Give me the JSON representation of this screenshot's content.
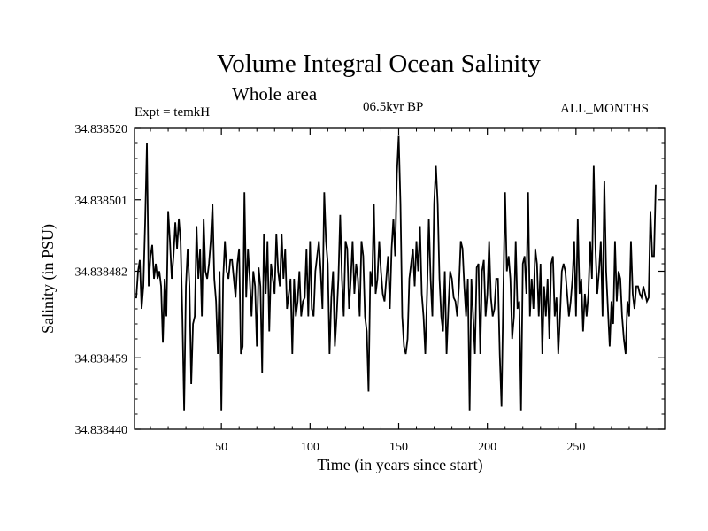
{
  "chart_data": {
    "type": "line",
    "title": "Volume Integral Ocean Salinity",
    "subtitle": "Whole area",
    "annotations": {
      "left": "Expt = temkH",
      "center": "06.5kyr BP",
      "right": "ALL_MONTHS"
    },
    "xlabel": "Time (in years since start)",
    "ylabel": "Salinity (in PSU)",
    "xlim": [
      1,
      300
    ],
    "ylim": [
      34.83844,
      34.83852
    ],
    "xticks": [
      50,
      100,
      150,
      200,
      250
    ],
    "xtick_labels": [
      "50",
      "100",
      "150",
      "200",
      "250"
    ],
    "yticks": [
      34.83844,
      34.838459,
      34.838482,
      34.838501,
      34.83852
    ],
    "ytick_labels": [
      "34.838440",
      "34.838459",
      "34.838482",
      "34.838501",
      "34.838520"
    ],
    "grid": false,
    "series": [
      {
        "name": "Salinity",
        "color": "#000000",
        "x_start": 1,
        "x_step": 1,
        "values": [
          34.838475,
          34.838475,
          34.838482,
          34.838485,
          34.838472,
          34.838478,
          34.838495,
          34.838516,
          34.838478,
          34.838486,
          34.838489,
          34.83848,
          34.838484,
          34.83848,
          34.838482,
          34.838478,
          34.838463,
          34.83848,
          34.83847,
          34.838498,
          34.83849,
          34.83848,
          34.838486,
          34.838495,
          34.838488,
          34.838496,
          34.83849,
          34.83847,
          34.838445,
          34.838478,
          34.838488,
          34.838478,
          34.838452,
          34.838468,
          34.83847,
          34.838494,
          34.83848,
          34.838488,
          34.83847,
          34.838496,
          34.838482,
          34.83848,
          34.838484,
          34.83849,
          34.8385,
          34.83848,
          34.838474,
          34.83846,
          34.838482,
          34.838445,
          34.83848,
          34.83849,
          34.838482,
          34.83848,
          34.838485,
          34.838485,
          34.83848,
          34.838475,
          34.838484,
          34.838488,
          34.83846,
          34.838462,
          34.838503,
          34.838475,
          34.838488,
          34.83848,
          34.83847,
          34.838482,
          34.838478,
          34.838462,
          34.838483,
          34.838478,
          34.838455,
          34.838492,
          34.838476,
          34.83849,
          34.838466,
          34.838484,
          34.83848,
          34.838476,
          34.838492,
          34.838482,
          34.838478,
          34.838492,
          34.83848,
          34.838488,
          34.838472,
          34.838476,
          34.83848,
          34.83846,
          34.83848,
          34.83847,
          34.838474,
          34.838482,
          34.83847,
          34.838474,
          34.838475,
          34.838488,
          34.83847,
          34.83849,
          34.838472,
          34.83847,
          34.838482,
          34.838486,
          34.83849,
          34.838482,
          34.838472,
          34.838503,
          34.83849,
          34.838484,
          34.83846,
          34.838475,
          34.838482,
          34.838462,
          34.83847,
          34.83848,
          34.838497,
          34.83848,
          34.83847,
          34.83849,
          34.838488,
          34.838472,
          34.83848,
          34.83849,
          34.838476,
          34.838484,
          34.83848,
          34.83847,
          34.83849,
          34.838486,
          34.83847,
          34.838466,
          34.83845,
          34.838482,
          34.838478,
          34.8385,
          34.838476,
          34.83848,
          34.83849,
          34.838482,
          34.838476,
          34.838474,
          34.83848,
          34.838486,
          34.838472,
          34.838488,
          34.838496,
          34.838486,
          34.838508,
          34.838518,
          34.8385,
          34.83847,
          34.838462,
          34.83846,
          34.838464,
          34.83848,
          34.838484,
          34.838488,
          34.838478,
          34.83849,
          34.838482,
          34.838494,
          34.838476,
          34.83847,
          34.83846,
          34.838476,
          34.838496,
          34.83848,
          34.83847,
          34.8385,
          34.83851,
          34.8385,
          34.83848,
          34.83847,
          34.838466,
          34.838482,
          34.83846,
          34.838472,
          34.838482,
          34.83848,
          34.838475,
          34.838474,
          34.83847,
          34.838478,
          34.83849,
          34.838488,
          34.838478,
          34.83847,
          34.83848,
          34.838445,
          34.83848,
          34.83847,
          34.83846,
          34.838483,
          34.838484,
          34.83846,
          34.838482,
          34.838485,
          34.83847,
          34.838476,
          34.83849,
          34.838475,
          34.83847,
          34.838472,
          34.83848,
          34.83848,
          34.83846,
          34.838446,
          34.838476,
          34.838503,
          34.838482,
          34.838486,
          34.83848,
          34.838464,
          34.83847,
          34.83849,
          34.838472,
          34.838474,
          34.838445,
          34.838484,
          34.838486,
          34.838476,
          34.838503,
          34.83847,
          34.83848,
          34.838472,
          34.838488,
          34.838484,
          34.83847,
          34.838484,
          34.83846,
          34.838478,
          34.83847,
          34.83848,
          34.838464,
          34.838484,
          34.838486,
          34.83847,
          34.838475,
          34.83846,
          34.83847,
          34.838482,
          34.838484,
          34.838482,
          34.838476,
          34.83847,
          34.838474,
          34.83848,
          34.83849,
          34.83847,
          34.838496,
          34.838476,
          34.83848,
          34.838466,
          34.838476,
          34.83847,
          34.838476,
          34.83849,
          34.83848,
          34.83851,
          34.838488,
          34.838476,
          34.838482,
          34.83849,
          34.83847,
          34.838506,
          34.838482,
          34.838472,
          34.838462,
          34.838474,
          34.838468,
          34.83849,
          34.838474,
          34.838482,
          34.83848,
          34.83847,
          34.838464,
          34.83846,
          34.838474,
          34.83847,
          34.83849,
          34.838476,
          34.838472,
          34.838478,
          34.838478,
          34.838476,
          34.838475,
          34.838478,
          34.838476,
          34.838474,
          34.838475,
          34.838498,
          34.838486,
          34.838486,
          34.838505
        ]
      }
    ]
  }
}
